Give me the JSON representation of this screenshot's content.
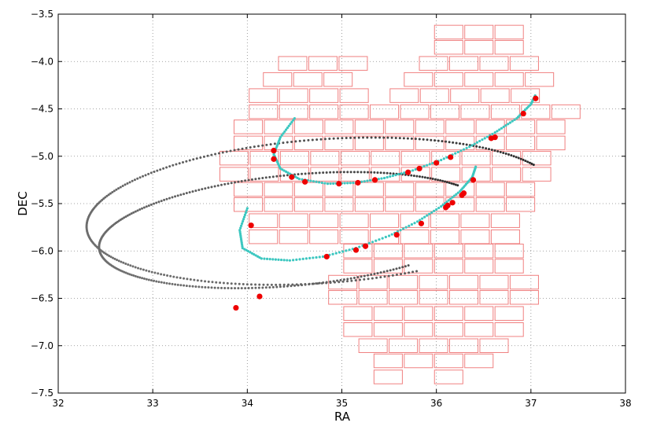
{
  "chart_data": {
    "type": "scatter",
    "title": "",
    "xlabel": "RA",
    "ylabel": "DEC",
    "xlim": [
      32,
      38
    ],
    "ylim": [
      -7.5,
      -3.5
    ],
    "grid": true,
    "xticks": [
      32,
      33,
      34,
      35,
      36,
      37,
      38
    ],
    "yticks": [
      -3.5,
      -4.0,
      -4.5,
      -5.0,
      -5.5,
      -6.0,
      -6.5,
      -7.0,
      -7.5
    ],
    "xtick_labels": [
      "32",
      "33",
      "34",
      "35",
      "36",
      "37",
      "38"
    ],
    "ytick_labels": [
      "−3.5",
      "−4.0",
      "−4.5",
      "−5.0",
      "−5.5",
      "−6.0",
      "−6.5",
      "−7.0",
      "−7.5"
    ],
    "colors": {
      "footprint": "#f08080",
      "track_dark": "#222222",
      "track_visible": "#3cc7c0",
      "detections": "#ee0000",
      "grid": "#888888"
    },
    "footprint_rows": [
      {
        "dec": -3.69,
        "ra": [
          35.98,
          36.3,
          36.62
        ]
      },
      {
        "dec": -3.85,
        "ra": [
          35.98,
          36.3,
          36.62
        ]
      },
      {
        "dec": -4.02,
        "ra": [
          34.33,
          34.65,
          34.97,
          35.82,
          36.14,
          36.46,
          36.78
        ]
      },
      {
        "dec": -4.19,
        "ra": [
          34.17,
          34.49,
          34.81,
          35.66,
          35.98,
          36.3,
          36.62,
          36.94
        ]
      },
      {
        "dec": -4.36,
        "ra": [
          34.02,
          34.34,
          34.66,
          34.98,
          35.51,
          35.83,
          36.15,
          36.47,
          36.79
        ]
      },
      {
        "dec": -4.53,
        "ra": [
          34.02,
          34.34,
          34.66,
          34.98,
          35.3,
          35.62,
          35.94,
          36.26,
          36.58,
          36.9,
          37.22
        ]
      },
      {
        "dec": -4.69,
        "ra": [
          33.86,
          34.18,
          34.5,
          34.82,
          35.14,
          35.46,
          35.78,
          36.1,
          36.42,
          36.74,
          37.06
        ]
      },
      {
        "dec": -4.86,
        "ra": [
          33.86,
          34.18,
          34.5,
          34.82,
          35.14,
          35.46,
          35.78,
          36.1,
          36.42,
          36.74,
          37.06
        ]
      },
      {
        "dec": -5.02,
        "ra": [
          33.71,
          34.03,
          34.35,
          34.67,
          34.99,
          35.31,
          35.63,
          35.95,
          36.27,
          36.59,
          36.91
        ]
      },
      {
        "dec": -5.19,
        "ra": [
          33.71,
          34.03,
          34.35,
          34.67,
          34.99,
          35.31,
          35.63,
          35.95,
          36.27,
          36.59,
          36.91
        ]
      },
      {
        "dec": -5.35,
        "ra": [
          33.86,
          34.18,
          34.5,
          34.82,
          35.14,
          35.46,
          35.78,
          36.1,
          36.42,
          36.74
        ]
      },
      {
        "dec": -5.51,
        "ra": [
          33.86,
          34.18,
          34.5,
          34.82,
          35.14,
          35.46,
          35.78,
          36.1,
          36.42,
          36.74
        ]
      },
      {
        "dec": -5.68,
        "ra": [
          34.02,
          34.34,
          34.66,
          34.98,
          35.3,
          35.62,
          35.94,
          36.26,
          36.58
        ]
      },
      {
        "dec": -5.85,
        "ra": [
          34.02,
          34.34,
          34.66,
          34.98,
          35.3,
          35.62,
          35.94,
          36.26,
          36.58
        ]
      },
      {
        "dec": -6.0,
        "ra": [
          35.02,
          35.34,
          35.66,
          35.98,
          36.3,
          36.62
        ]
      },
      {
        "dec": -6.16,
        "ra": [
          35.02,
          35.34,
          35.66,
          35.98,
          36.3,
          36.62
        ]
      },
      {
        "dec": -6.33,
        "ra": [
          34.86,
          35.18,
          35.5,
          35.82,
          36.14,
          36.46,
          36.78
        ]
      },
      {
        "dec": -6.49,
        "ra": [
          34.86,
          35.18,
          35.5,
          35.82,
          36.14,
          36.46,
          36.78
        ]
      },
      {
        "dec": -6.66,
        "ra": [
          35.02,
          35.34,
          35.66,
          35.98,
          36.3,
          36.62
        ]
      },
      {
        "dec": -6.83,
        "ra": [
          35.02,
          35.34,
          35.66,
          35.98,
          36.3,
          36.62
        ]
      },
      {
        "dec": -7.0,
        "ra": [
          35.18,
          35.5,
          35.82,
          36.14,
          36.46
        ]
      },
      {
        "dec": -7.16,
        "ra": [
          35.34,
          35.66,
          35.98,
          36.3
        ]
      },
      {
        "dec": -7.33,
        "ra": [
          35.34,
          35.98
        ]
      }
    ],
    "footprint_tile": {
      "width": 0.3,
      "height": 0.145
    },
    "tracks": [
      {
        "ra_center": 34.8,
        "dec_center": -5.58,
        "ra_amp": 2.5,
        "dec_amp": 1.25,
        "phase_start": 0.05,
        "phase_end": 4.7,
        "ra_tilt": 1.4,
        "dec_tilt": -0.9
      },
      {
        "ra_center": 34.5,
        "dec_center": -5.78,
        "ra_amp": 2.1,
        "dec_amp": 0.95,
        "phase_start": 0.2,
        "phase_end": 4.95,
        "ra_tilt": 1.6,
        "dec_tilt": -0.8
      }
    ],
    "visible_segments": [
      {
        "x": [
          34.5,
          34.35,
          34.28,
          34.35,
          34.55,
          34.85,
          35.15,
          35.45,
          35.75,
          36.05,
          36.35,
          36.62,
          36.85,
          37.0,
          37.05
        ],
        "y": [
          -4.6,
          -4.8,
          -4.98,
          -5.13,
          -5.24,
          -5.29,
          -5.28,
          -5.23,
          -5.15,
          -5.04,
          -4.9,
          -4.75,
          -4.6,
          -4.45,
          -4.35
        ]
      },
      {
        "x": [
          34.0,
          33.92,
          33.95,
          34.15,
          34.45,
          34.8,
          35.15,
          35.5,
          35.8,
          36.05,
          36.25,
          36.38,
          36.42
        ],
        "y": [
          -5.55,
          -5.78,
          -5.97,
          -6.08,
          -6.1,
          -6.06,
          -5.97,
          -5.84,
          -5.69,
          -5.53,
          -5.37,
          -5.22,
          -5.1
        ]
      }
    ],
    "detections": {
      "ra": [
        34.28,
        34.28,
        34.47,
        34.61,
        34.97,
        35.17,
        35.35,
        35.7,
        35.82,
        36.0,
        36.15,
        37.05,
        36.92,
        36.62,
        36.58,
        34.04,
        34.84,
        35.15,
        35.25,
        35.58,
        35.84,
        36.1,
        36.12,
        36.17,
        36.27,
        36.29,
        36.39,
        33.88,
        34.13
      ],
      "dec": [
        -4.94,
        -5.03,
        -5.22,
        -5.27,
        -5.29,
        -5.28,
        -5.25,
        -5.17,
        -5.13,
        -5.07,
        -5.01,
        -4.39,
        -4.55,
        -4.8,
        -4.81,
        -5.73,
        -6.06,
        -5.99,
        -5.95,
        -5.83,
        -5.71,
        -5.54,
        -5.52,
        -5.49,
        -5.41,
        -5.39,
        -5.25,
        -6.6,
        -6.48
      ]
    }
  }
}
